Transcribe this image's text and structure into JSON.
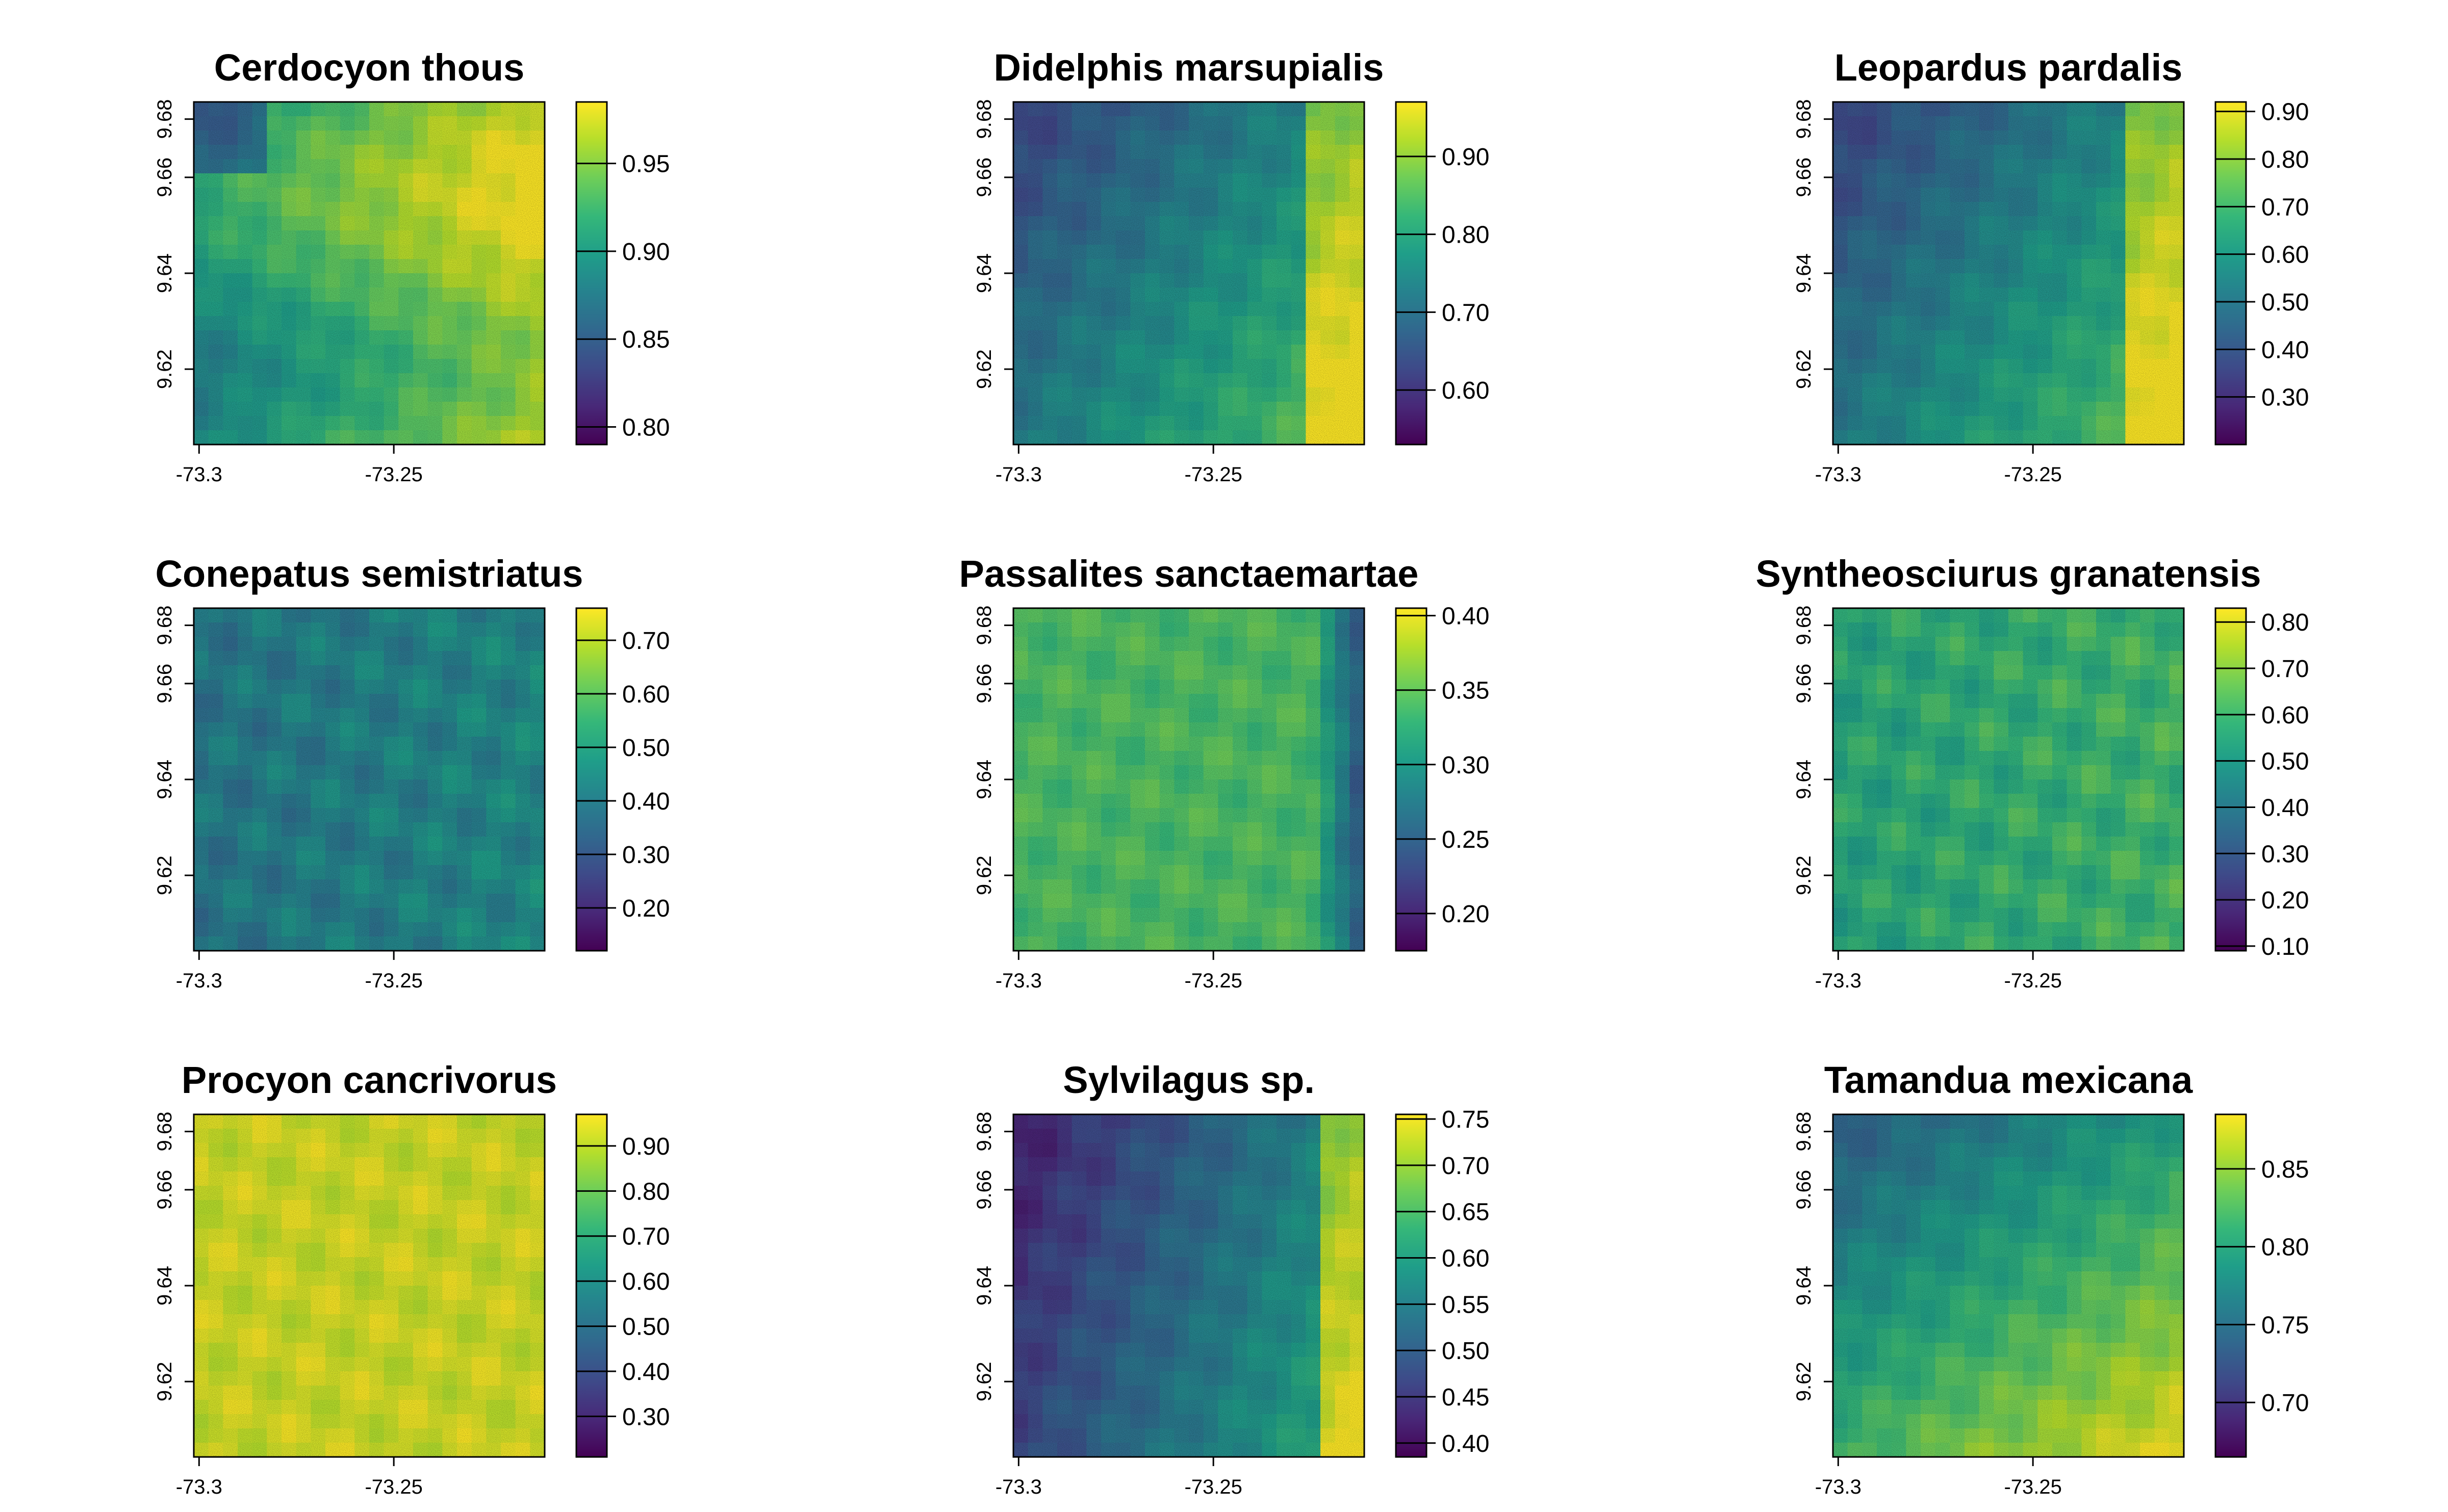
{
  "x_ticks": [
    "-73.3",
    "-73.25"
  ],
  "y_ticks": [
    "9.62",
    "9.64",
    "9.66",
    "9.68"
  ],
  "palette": [
    "#440154",
    "#482878",
    "#3e4a89",
    "#31688e",
    "#26828e",
    "#1f9e89",
    "#35b779",
    "#6ece58",
    "#b5de2b",
    "#fde725"
  ],
  "chart_data": [
    {
      "type": "heatmap",
      "title": "Cerdocyon thous",
      "colorbar": {
        "range": [
          0.79,
          0.985
        ],
        "ticks": [
          "0.80",
          "0.85",
          "0.90",
          "0.95"
        ],
        "tick_values": [
          0.8,
          0.85,
          0.9,
          0.95
        ]
      },
      "pattern": "bright-center"
    },
    {
      "type": "heatmap",
      "title": "Didelphis marsupialis",
      "colorbar": {
        "range": [
          0.53,
          0.97
        ],
        "ticks": [
          "0.60",
          "0.70",
          "0.80",
          "0.90"
        ],
        "tick_values": [
          0.6,
          0.7,
          0.8,
          0.9
        ]
      },
      "pattern": "east-gradient"
    },
    {
      "type": "heatmap",
      "title": "Leopardus pardalis",
      "colorbar": {
        "range": [
          0.2,
          0.92
        ],
        "ticks": [
          "0.30",
          "0.40",
          "0.50",
          "0.60",
          "0.70",
          "0.80",
          "0.90"
        ],
        "tick_values": [
          0.3,
          0.4,
          0.5,
          0.6,
          0.7,
          0.8,
          0.9
        ]
      },
      "pattern": "east-gradient"
    },
    {
      "type": "heatmap",
      "title": "Conepatus semistriatus",
      "colorbar": {
        "range": [
          0.12,
          0.76
        ],
        "ticks": [
          "0.20",
          "0.30",
          "0.40",
          "0.50",
          "0.60",
          "0.70"
        ],
        "tick_values": [
          0.2,
          0.3,
          0.4,
          0.5,
          0.6,
          0.7
        ]
      },
      "pattern": "uniform-mid"
    },
    {
      "type": "heatmap",
      "title": "Passalites sanctaemartae",
      "colorbar": {
        "range": [
          0.175,
          0.405
        ],
        "ticks": [
          "0.20",
          "0.25",
          "0.30",
          "0.35",
          "0.40"
        ],
        "tick_values": [
          0.2,
          0.25,
          0.3,
          0.35,
          0.4
        ]
      },
      "pattern": "east-dark"
    },
    {
      "type": "heatmap",
      "title": "Syntheosciurus granatensis",
      "colorbar": {
        "range": [
          0.09,
          0.83
        ],
        "ticks": [
          "0.10",
          "0.20",
          "0.30",
          "0.40",
          "0.50",
          "0.60",
          "0.70",
          "0.80"
        ],
        "tick_values": [
          0.1,
          0.2,
          0.3,
          0.4,
          0.5,
          0.6,
          0.7,
          0.8
        ]
      },
      "pattern": "uniform-green"
    },
    {
      "type": "heatmap",
      "title": "Procyon cancrivorus",
      "colorbar": {
        "range": [
          0.21,
          0.97
        ],
        "ticks": [
          "0.30",
          "0.40",
          "0.50",
          "0.60",
          "0.70",
          "0.80",
          "0.90"
        ],
        "tick_values": [
          0.3,
          0.4,
          0.5,
          0.6,
          0.7,
          0.8,
          0.9
        ]
      },
      "pattern": "uniform-bright"
    },
    {
      "type": "heatmap",
      "title": "Sylvilagus sp.",
      "colorbar": {
        "range": [
          0.385,
          0.755
        ],
        "ticks": [
          "0.40",
          "0.45",
          "0.50",
          "0.55",
          "0.60",
          "0.65",
          "0.70",
          "0.75"
        ],
        "tick_values": [
          0.4,
          0.45,
          0.5,
          0.55,
          0.6,
          0.65,
          0.7,
          0.75
        ]
      },
      "pattern": "west-dark"
    },
    {
      "type": "heatmap",
      "title": "Tamandua mexicana",
      "colorbar": {
        "range": [
          0.665,
          0.885
        ],
        "ticks": [
          "0.70",
          "0.75",
          "0.80",
          "0.85"
        ],
        "tick_values": [
          0.7,
          0.75,
          0.8,
          0.85
        ]
      },
      "pattern": "north-dark"
    }
  ]
}
